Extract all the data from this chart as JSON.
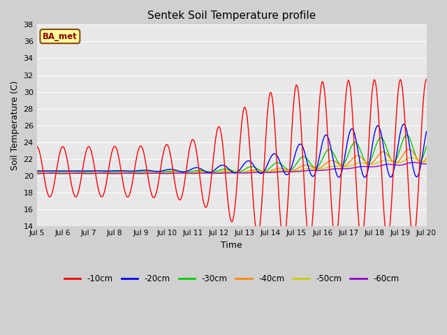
{
  "title": "Sentek Soil Temperature profile",
  "xlabel": "Time",
  "ylabel": "Soil Temperature (C)",
  "xlim": [
    0,
    15
  ],
  "ylim": [
    14,
    38
  ],
  "yticks": [
    14,
    16,
    18,
    20,
    22,
    24,
    26,
    28,
    30,
    32,
    34,
    36,
    38
  ],
  "xtick_labels": [
    "Jul 5",
    "Jul 6",
    "Jul 7",
    "Jul 8",
    "Jul 9",
    "Jul 10",
    "Jul 11",
    "Jul 12",
    "Jul 13",
    "Jul 14",
    "Jul 15",
    "Jul 16",
    "Jul 17",
    "Jul 18",
    "Jul 19",
    "Jul 20"
  ],
  "annotation_text": "BA_met",
  "annotation_bg": "#ffff99",
  "annotation_border": "#8B4513",
  "plot_bg": "#e8e8e8",
  "fig_bg": "#d0d0d0",
  "grid_color": "#ffffff",
  "series": [
    {
      "label": "-10cm",
      "color": "#ff0000"
    },
    {
      "label": "-20cm",
      "color": "#0000ff"
    },
    {
      "label": "-30cm",
      "color": "#00cc00"
    },
    {
      "label": "-40cm",
      "color": "#ff8800"
    },
    {
      "label": "-50cm",
      "color": "#cccc00"
    },
    {
      "label": "-60cm",
      "color": "#9900cc"
    }
  ]
}
